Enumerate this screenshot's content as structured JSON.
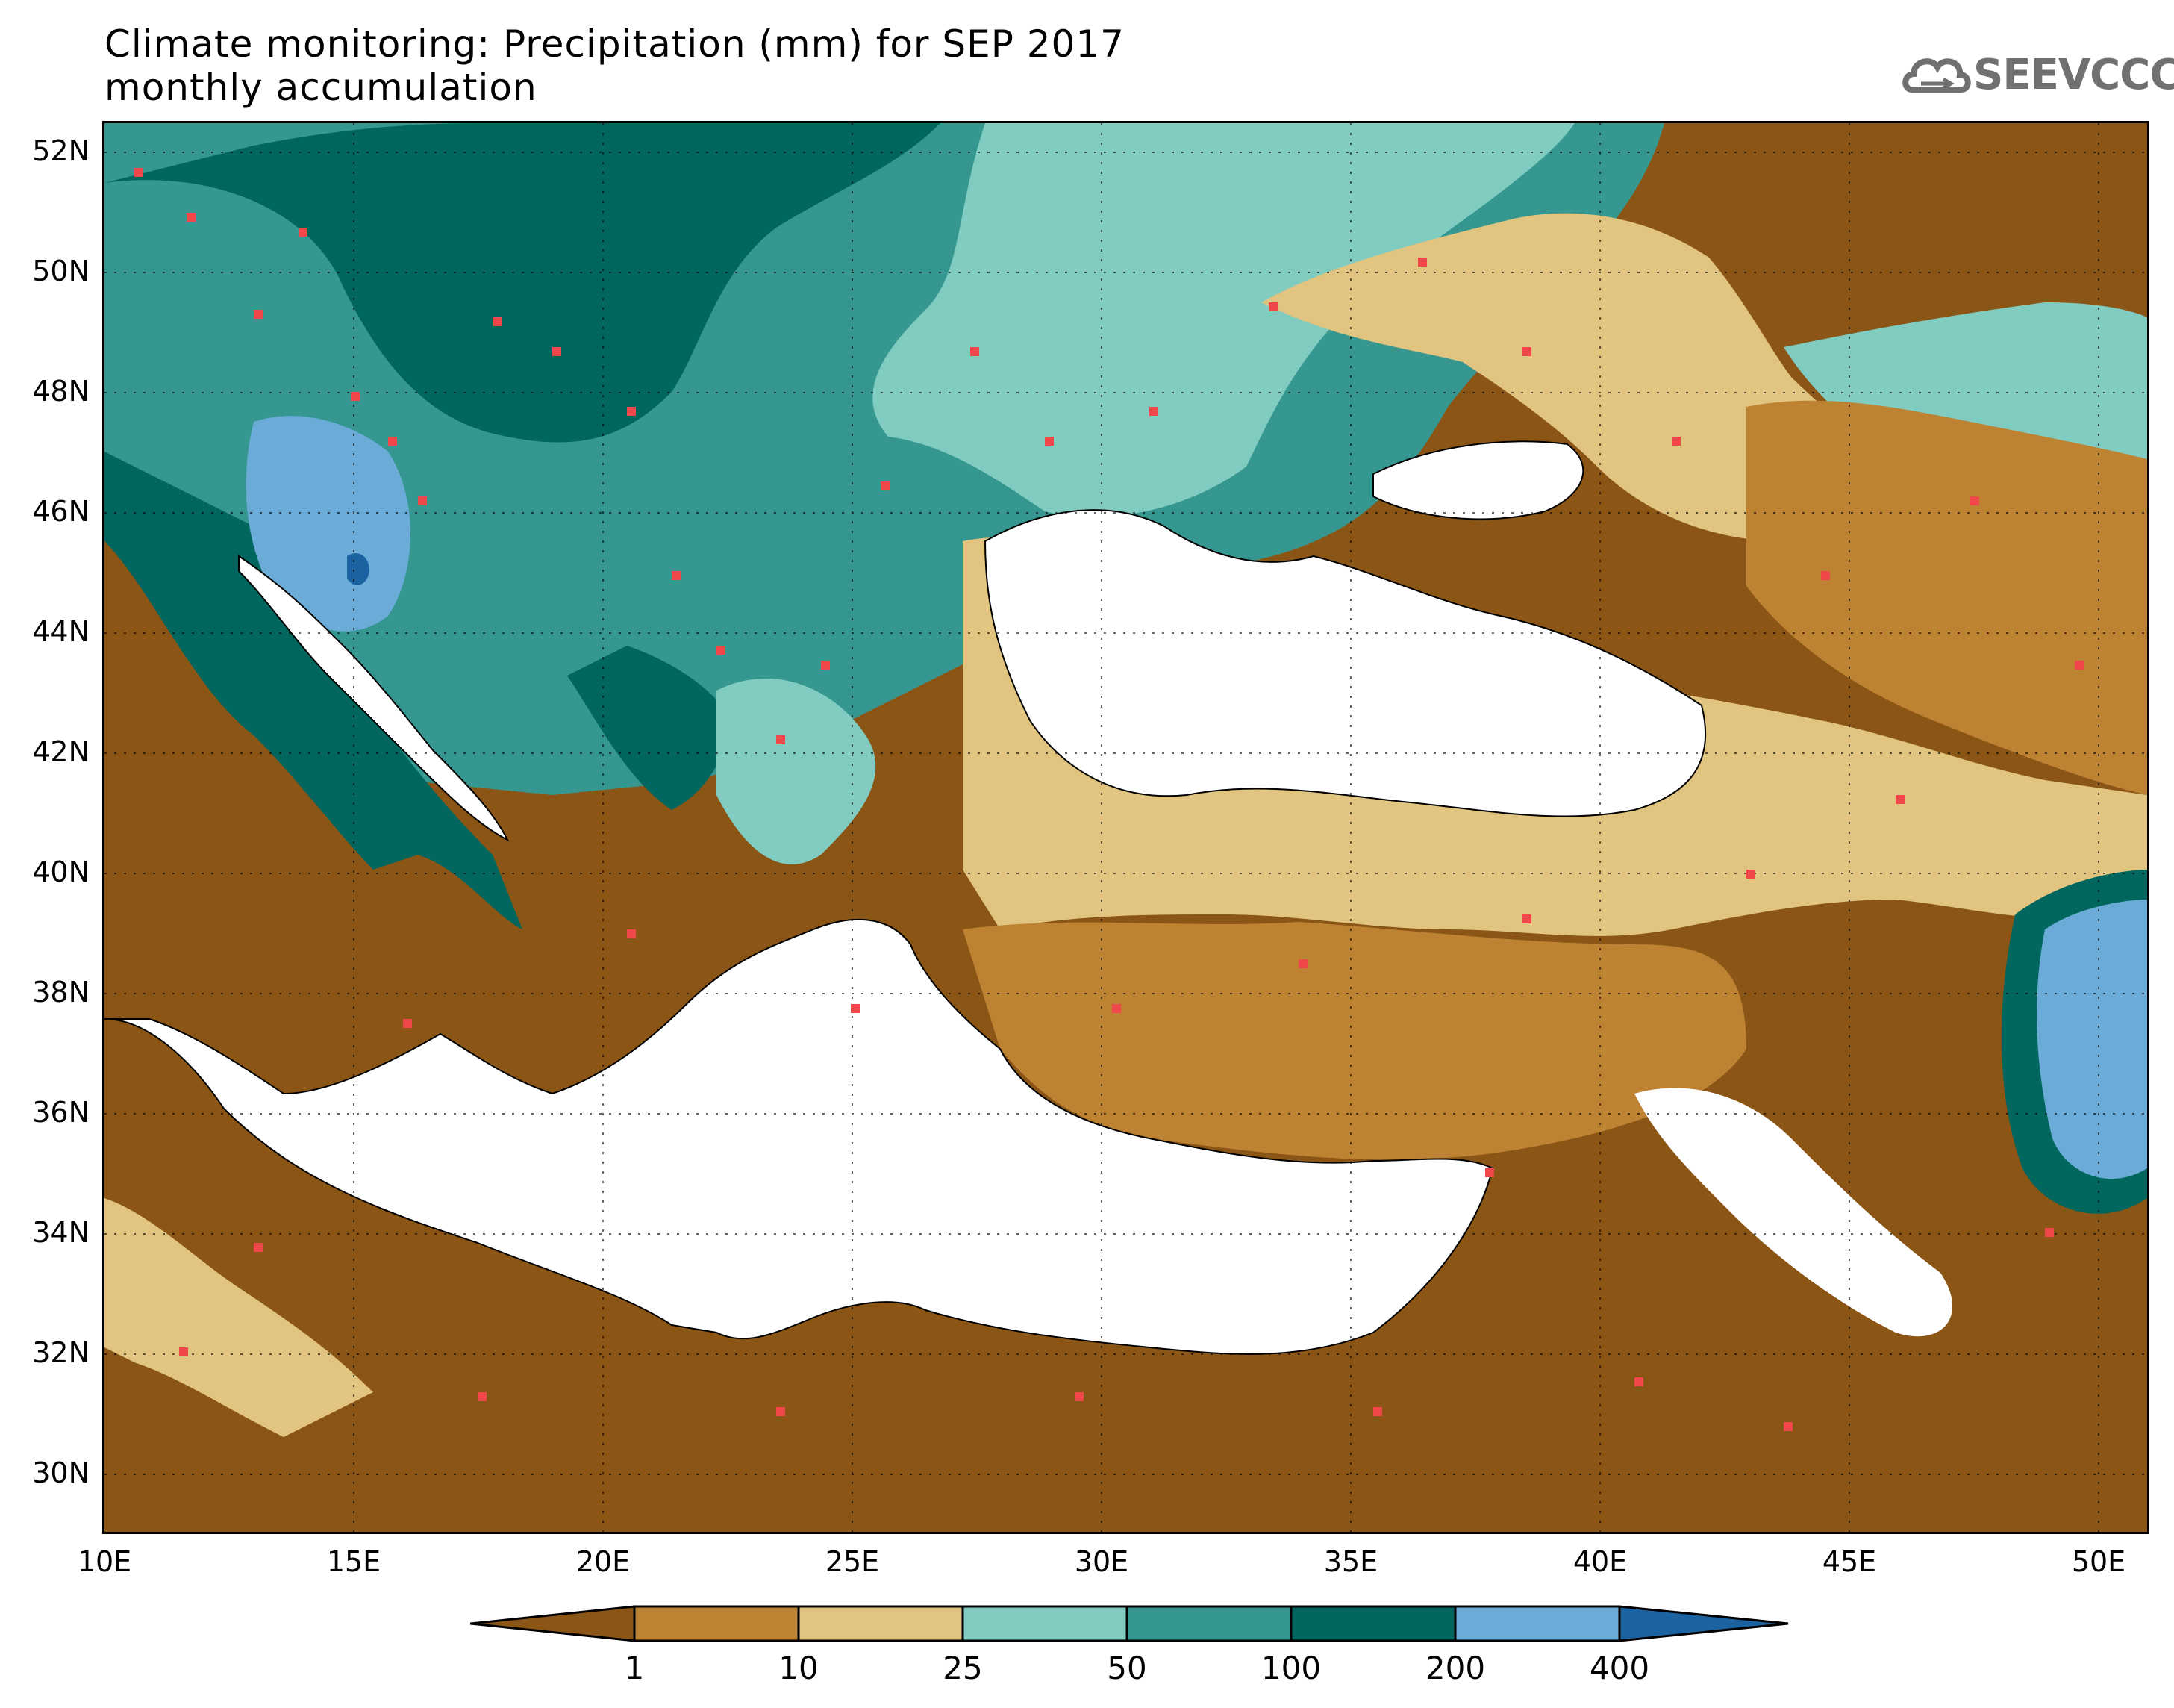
{
  "title": {
    "line1": "Climate monitoring: Precipitation (mm) for SEP 2017",
    "line2": "monthly accumulation"
  },
  "logo": {
    "text": "SEEVCCC",
    "icon": "cloud-icon"
  },
  "map": {
    "lat_ticks": [
      "52N",
      "50N",
      "48N",
      "46N",
      "44N",
      "42N",
      "40N",
      "38N",
      "36N",
      "34N",
      "32N",
      "30N"
    ],
    "lon_ticks": [
      "10E",
      "15E",
      "20E",
      "25E",
      "30E",
      "35E",
      "40E",
      "45E",
      "50E"
    ],
    "lat_range": [
      29.0,
      52.5
    ],
    "lon_range": [
      10,
      51
    ],
    "grid": "dotted",
    "stations": "red squares"
  },
  "legend": {
    "thresholds": [
      "1",
      "10",
      "25",
      "50",
      "100",
      "200",
      "400"
    ],
    "colors": [
      "#8a5515",
      "#be8233",
      "#e0c47f",
      "#80ccc1",
      "#35978f",
      "#01665e",
      "#6aabd8",
      "#1b62a1"
    ]
  }
}
